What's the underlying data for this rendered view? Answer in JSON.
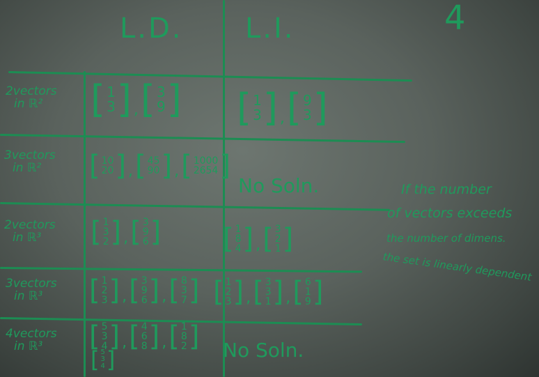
{
  "headers": {
    "ld": "L.D.",
    "li": "L.I."
  },
  "corner_mark": "4",
  "rows": [
    {
      "label": [
        "2vectors",
        "in ℝ²"
      ],
      "ld": [
        [
          "1",
          "3"
        ],
        [
          "3",
          "9"
        ]
      ],
      "li": [
        [
          "1",
          "3"
        ],
        [
          "9",
          "3"
        ]
      ]
    },
    {
      "label": [
        "3vectors",
        "in ℝ²"
      ],
      "ld": [
        [
          "10",
          "20"
        ],
        [
          "45",
          "90"
        ],
        [
          "1000",
          "2654"
        ]
      ],
      "li_text": "No Soln."
    },
    {
      "label": [
        "2vectors",
        "in ℝ³"
      ],
      "ld": [
        [
          "1",
          "3",
          "2"
        ],
        [
          "3",
          "9",
          "6"
        ]
      ],
      "li": [
        [
          "1",
          "8",
          "4"
        ],
        [
          "3",
          "2",
          "1"
        ]
      ]
    },
    {
      "label": [
        "3vectors",
        "in ℝ³"
      ],
      "ld": [
        [
          "1",
          "2",
          "3"
        ],
        [
          "3",
          "9",
          "6"
        ],
        [
          "8",
          "3",
          "7"
        ]
      ],
      "li": [
        [
          "1",
          "2",
          "3"
        ],
        [
          "3",
          "3",
          "1"
        ],
        [
          "6",
          "1",
          "9"
        ]
      ]
    },
    {
      "label": [
        "4vectors",
        "in ℝ³"
      ],
      "ld": [
        [
          "5",
          "3",
          "4"
        ],
        [
          "4",
          "6",
          "8"
        ],
        [
          "1",
          "8",
          "2"
        ],
        [
          "5",
          "3",
          "4"
        ]
      ],
      "li_text": "No Soln."
    }
  ],
  "note": {
    "line1": "If the number",
    "line2": "of vectors exceeds",
    "line3": "the number of dimens.",
    "line4": "the set is linearly dependent"
  },
  "colors": {
    "ink": "#1f9a5c",
    "board": "#5e6661"
  }
}
